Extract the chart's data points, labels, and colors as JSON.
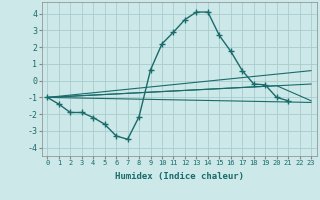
{
  "xlabel": "Humidex (Indice chaleur)",
  "background_color": "#cce8e8",
  "grid_color": "#aacccc",
  "line_color": "#1a6b6b",
  "xlim": [
    -0.5,
    23.5
  ],
  "ylim": [
    -4.5,
    4.7
  ],
  "yticks": [
    -4,
    -3,
    -2,
    -1,
    0,
    1,
    2,
    3,
    4
  ],
  "xticks": [
    0,
    1,
    2,
    3,
    4,
    5,
    6,
    7,
    8,
    9,
    10,
    11,
    12,
    13,
    14,
    15,
    16,
    17,
    18,
    19,
    20,
    21,
    22,
    23
  ],
  "main_x": [
    0,
    1,
    2,
    3,
    4,
    5,
    6,
    7,
    8,
    9,
    10,
    11,
    12,
    13,
    14,
    15,
    16,
    17,
    18,
    19,
    20,
    21
  ],
  "main_y": [
    -1.0,
    -1.4,
    -1.9,
    -1.9,
    -2.2,
    -2.6,
    -3.3,
    -3.5,
    -2.15,
    0.65,
    2.2,
    2.9,
    3.65,
    4.1,
    4.1,
    2.7,
    1.75,
    0.6,
    -0.2,
    -0.25,
    -1.0,
    -1.2
  ],
  "line1_x": [
    0,
    23
  ],
  "line1_y": [
    -1.0,
    0.6
  ],
  "line2_x": [
    0,
    23
  ],
  "line2_y": [
    -1.0,
    -0.2
  ],
  "line3_x": [
    0,
    20,
    23
  ],
  "line3_y": [
    -1.0,
    -0.3,
    -1.2
  ],
  "line4_x": [
    0,
    23
  ],
  "line4_y": [
    -1.0,
    -1.3
  ]
}
